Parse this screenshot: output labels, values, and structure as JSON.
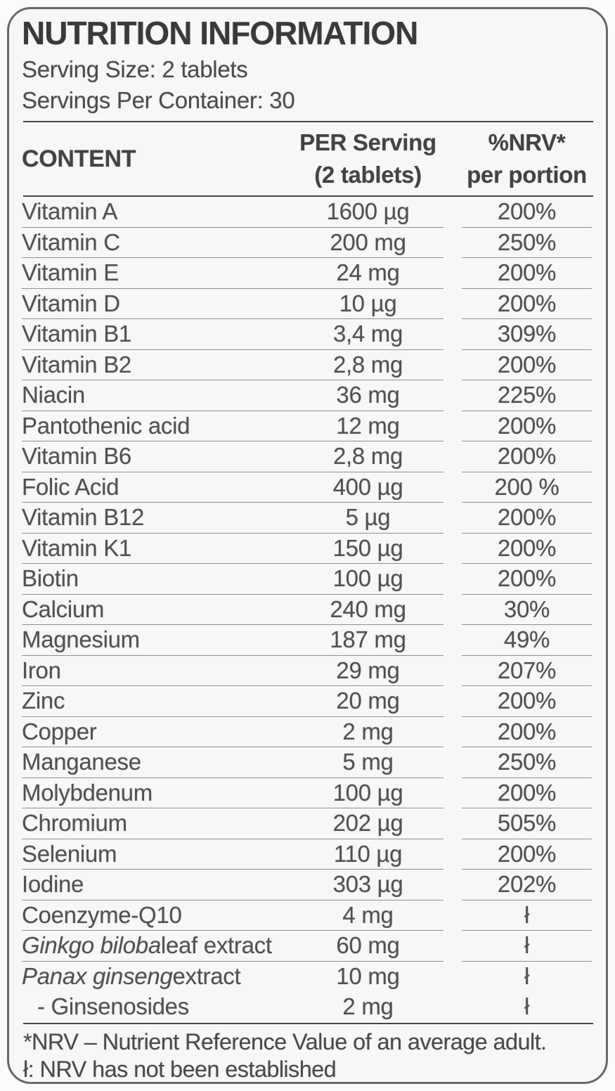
{
  "label": {
    "title": "NUTRITION INFORMATION",
    "serving_size": "Serving Size: 2 tablets",
    "servings_per_container": "Servings Per Container: 30",
    "columns": {
      "content": "CONTENT",
      "per_serving_line1": "PER Serving",
      "per_serving_line2": "(2 tablets)",
      "nrv_line1": "%NRV*",
      "nrv_line2": "per portion"
    },
    "rows": [
      {
        "name": "Vitamin A",
        "amount": "1600 µg",
        "nrv": "200%"
      },
      {
        "name": "Vitamin C",
        "amount": "200 mg",
        "nrv": "250%"
      },
      {
        "name": "Vitamin E",
        "amount": "24 mg",
        "nrv": "200%"
      },
      {
        "name": "Vitamin D",
        "amount": "10 µg",
        "nrv": "200%"
      },
      {
        "name": "Vitamin B1",
        "amount": "3,4 mg",
        "nrv": "309%"
      },
      {
        "name": "Vitamin B2",
        "amount": "2,8 mg",
        "nrv": "200%"
      },
      {
        "name": "Niacin",
        "amount": "36 mg",
        "nrv": "225%"
      },
      {
        "name": "Pantothenic acid",
        "amount": "12 mg",
        "nrv": "200%"
      },
      {
        "name": "Vitamin B6",
        "amount": "2,8 mg",
        "nrv": "200%"
      },
      {
        "name": "Folic Acid",
        "amount": "400 µg",
        "nrv": "200 %"
      },
      {
        "name": "Vitamin B12",
        "amount": "5 µg",
        "nrv": "200%"
      },
      {
        "name": "Vitamin K1",
        "amount": "150 µg",
        "nrv": "200%"
      },
      {
        "name": "Biotin",
        "amount": "100 µg",
        "nrv": "200%"
      },
      {
        "name": "Calcium",
        "amount": "240 mg",
        "nrv": "30%"
      },
      {
        "name": "Magnesium",
        "amount": "187 mg",
        "nrv": "49%"
      },
      {
        "name": "Iron",
        "amount": "29 mg",
        "nrv": "207%"
      },
      {
        "name": "Zinc",
        "amount": "20 mg",
        "nrv": "200%"
      },
      {
        "name": "Copper",
        "amount": "2 mg",
        "nrv": "200%"
      },
      {
        "name": "Manganese",
        "amount": "5 mg",
        "nrv": "250%"
      },
      {
        "name": "Molybdenum",
        "amount": "100 µg",
        "nrv": "200%"
      },
      {
        "name": "Chromium",
        "amount": "202 µg",
        "nrv": "505%"
      },
      {
        "name": "Selenium",
        "amount": "110 µg",
        "nrv": "200%"
      },
      {
        "name": "Iodine",
        "amount": "303 µg",
        "nrv": "202%"
      },
      {
        "name": "Coenzyme-Q10",
        "amount": "4 mg",
        "nrv": "ł"
      },
      {
        "name_italic": "Ginkgo biloba",
        "name": " leaf extract",
        "amount": "60 mg",
        "nrv": "ł"
      },
      {
        "name_italic": "Panax ginseng",
        "name": " extract",
        "amount": "10 mg",
        "nrv": "ł"
      },
      {
        "name": "- Ginsenosides",
        "sub_of_previous": true,
        "amount": "2 mg",
        "nrv": "ł"
      }
    ],
    "footnotes": [
      "*NRV – Nutrient Reference Value of an average adult.",
      "ł: NRV has not been established"
    ]
  },
  "colors": {
    "background": "#fbfbfa",
    "panel": "#f7f7f6",
    "border": "#68686b",
    "title": "#3a3a3c",
    "text": "#515154",
    "line_light": "#8f8f92",
    "line_dark": "#454547"
  }
}
